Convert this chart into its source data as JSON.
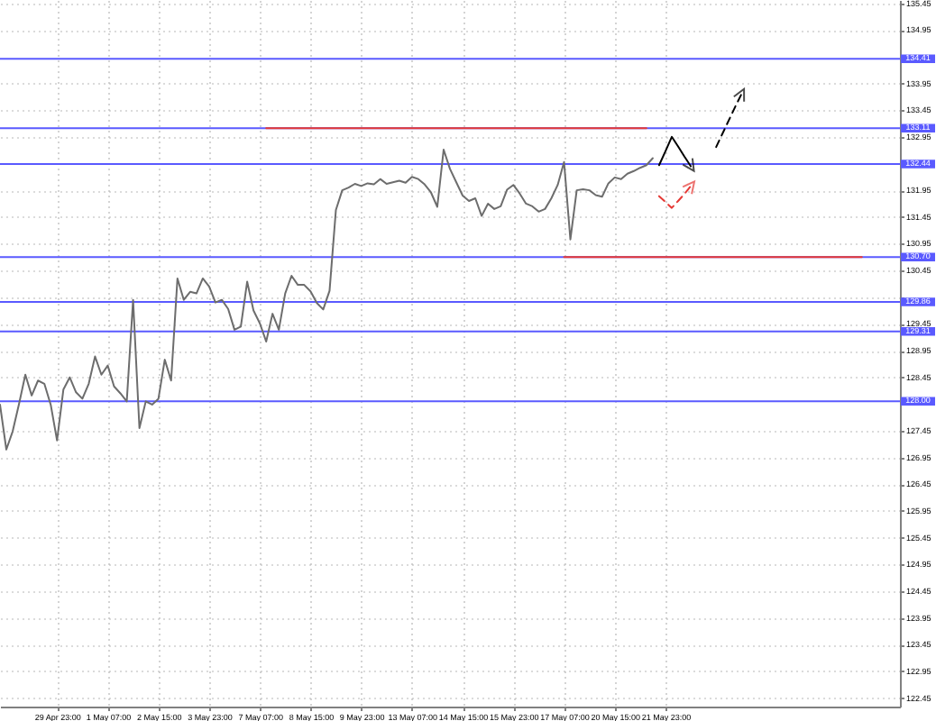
{
  "chart_data": {
    "type": "line",
    "categories": [
      null,
      null,
      null,
      null,
      null,
      null,
      null,
      null,
      null,
      "29 Apr 23:00",
      null,
      null,
      null,
      null,
      null,
      null,
      null,
      "1 May 07:00",
      null,
      null,
      null,
      null,
      null,
      null,
      null,
      "2 May 15:00",
      null,
      null,
      null,
      null,
      null,
      null,
      null,
      "3 May 23:00",
      null,
      null,
      null,
      null,
      null,
      null,
      null,
      "7 May 07:00",
      null,
      null,
      null,
      null,
      null,
      null,
      null,
      "8 May 15:00",
      null,
      null,
      null,
      null,
      null,
      null,
      null,
      "9 May 23:00",
      null,
      null,
      null,
      null,
      null,
      null,
      null,
      "13 May 07:00",
      null,
      null,
      null,
      null,
      null,
      null,
      null,
      "14 May 15:00",
      null,
      null,
      null,
      null,
      null,
      null,
      null,
      "15 May 23:00",
      null,
      null,
      null,
      null,
      null,
      null,
      null,
      "17 May 07:00",
      null,
      null,
      null,
      null,
      null,
      null,
      null,
      "20 May 15:00",
      null,
      null,
      null,
      null,
      null,
      null,
      null,
      "21 May 23:00",
      null,
      null,
      null,
      null,
      null,
      null,
      null,
      null,
      null,
      null,
      null,
      null,
      null,
      null,
      null,
      null,
      null,
      null,
      null,
      null,
      null,
      null,
      null,
      null,
      null,
      null,
      null,
      null,
      null,
      null,
      null,
      null,
      null,
      null,
      null,
      null,
      null
    ],
    "series": [
      {
        "color": "#6d6d6d",
        "values": [
          127.94,
          127.1,
          127.44,
          127.95,
          128.5,
          128.11,
          128.39,
          128.33,
          127.94,
          127.27,
          128.22,
          128.45,
          128.17,
          128.05,
          128.33,
          128.84,
          128.5,
          128.67,
          128.28,
          128.15,
          128.0,
          129.9,
          127.5,
          128.0,
          127.94,
          128.05,
          128.78,
          128.39,
          130.3,
          129.9,
          130.05,
          130.02,
          130.3,
          130.15,
          129.85,
          129.9,
          129.73,
          129.34,
          129.4,
          130.24,
          129.7,
          129.46,
          129.12,
          129.64,
          129.34,
          130.02,
          130.35,
          130.18,
          130.18,
          130.06,
          129.84,
          129.72,
          130.07,
          131.58,
          131.95,
          132.0,
          132.07,
          132.03,
          132.08,
          132.06,
          132.16,
          132.07,
          132.1,
          132.13,
          132.09,
          132.2,
          132.16,
          132.06,
          131.91,
          131.64,
          132.71,
          132.35,
          132.1,
          131.85,
          131.75,
          131.8,
          131.47,
          131.7,
          131.6,
          131.65,
          131.96,
          132.05,
          131.89,
          131.7,
          131.65,
          131.55,
          131.6,
          131.8,
          132.05,
          132.48,
          131.03,
          131.95,
          131.97,
          131.95,
          131.86,
          131.83,
          132.08,
          132.19,
          132.16,
          132.26,
          132.31,
          132.37,
          132.42,
          132.55,
          null,
          null,
          null,
          null,
          null,
          null,
          null,
          null,
          null,
          null,
          null,
          null,
          null,
          null,
          null,
          null,
          null,
          null,
          null,
          null,
          null,
          null,
          null,
          null,
          null,
          null,
          null,
          null,
          null,
          null,
          null,
          null,
          null,
          null,
          null,
          null,
          null,
          null,
          null
        ]
      },
      {
        "type": "line",
        "color": "#e53935",
        "values": [
          null,
          null,
          null,
          null,
          null,
          null,
          null,
          null,
          null,
          null,
          null,
          null,
          null,
          null,
          null,
          null,
          null,
          null,
          null,
          null,
          null,
          null,
          null,
          null,
          null,
          null,
          null,
          null,
          null,
          null,
          null,
          null,
          null,
          null,
          null,
          null,
          null,
          null,
          null,
          null,
          null,
          null,
          133.11,
          133.11,
          133.11,
          133.11,
          133.11,
          133.11,
          133.11,
          133.11,
          133.11,
          133.11,
          133.11,
          133.11,
          133.11,
          133.11,
          133.11,
          133.11,
          133.11,
          133.11,
          133.11,
          133.11,
          133.11,
          133.11,
          133.11,
          133.11,
          133.11,
          133.11,
          133.11,
          133.11,
          133.11,
          133.11,
          133.11,
          133.11,
          133.11,
          133.11,
          133.11,
          133.11,
          133.11,
          133.11,
          133.11,
          133.11,
          133.11,
          133.11,
          133.11,
          133.11,
          133.11,
          133.11,
          133.11,
          133.11,
          133.11,
          133.11,
          133.11,
          133.11,
          133.11,
          133.11,
          133.11,
          133.11,
          133.11,
          133.11,
          133.11,
          133.11,
          133.11,
          null,
          null,
          null,
          null,
          null,
          null,
          null,
          null,
          null,
          null,
          null,
          null,
          null,
          null,
          null,
          null,
          null,
          null,
          null,
          null,
          null,
          null,
          null,
          null,
          null,
          null,
          null,
          null,
          null,
          null,
          null,
          null,
          null,
          null,
          null,
          null,
          null,
          null,
          null,
          null
        ]
      },
      {
        "type": "line",
        "color": "#e53935",
        "values": [
          null,
          null,
          null,
          null,
          null,
          null,
          null,
          null,
          null,
          null,
          null,
          null,
          null,
          null,
          null,
          null,
          null,
          null,
          null,
          null,
          null,
          null,
          null,
          null,
          null,
          null,
          null,
          null,
          null,
          null,
          null,
          null,
          null,
          null,
          null,
          null,
          null,
          null,
          null,
          null,
          null,
          null,
          null,
          null,
          null,
          null,
          null,
          null,
          null,
          null,
          null,
          null,
          null,
          null,
          null,
          null,
          null,
          null,
          null,
          null,
          null,
          null,
          null,
          null,
          null,
          null,
          null,
          null,
          null,
          null,
          null,
          null,
          null,
          null,
          null,
          null,
          null,
          null,
          null,
          null,
          null,
          null,
          null,
          null,
          null,
          null,
          null,
          null,
          null,
          130.7,
          130.7,
          130.7,
          130.7,
          130.7,
          130.7,
          130.7,
          130.7,
          130.7,
          130.7,
          130.7,
          130.7,
          130.7,
          130.7,
          130.7,
          130.7,
          130.7,
          130.7,
          130.7,
          130.7,
          130.7,
          130.7,
          130.7,
          130.7,
          130.7,
          130.7,
          130.7,
          130.7,
          130.7,
          130.7,
          130.7,
          130.7,
          130.7,
          130.7,
          130.7,
          130.7,
          130.7,
          130.7,
          130.7,
          130.7,
          130.7,
          130.7,
          130.7,
          130.7,
          130.7,
          130.7,
          130.7,
          130.7,
          null,
          null,
          null,
          null,
          null,
          null
        ]
      },
      {
        "type": "line",
        "color": "#000000",
        "line_style": "solid",
        "values": [
          null,
          null,
          null,
          null,
          null,
          null,
          null,
          null,
          null,
          null,
          null,
          null,
          null,
          null,
          null,
          null,
          null,
          null,
          null,
          null,
          null,
          null,
          null,
          null,
          null,
          null,
          null,
          null,
          null,
          null,
          null,
          null,
          null,
          null,
          null,
          null,
          null,
          null,
          null,
          null,
          null,
          null,
          null,
          null,
          null,
          null,
          null,
          null,
          null,
          null,
          null,
          null,
          null,
          null,
          null,
          null,
          null,
          null,
          null,
          null,
          null,
          null,
          null,
          null,
          null,
          null,
          null,
          null,
          null,
          null,
          null,
          null,
          null,
          null,
          null,
          null,
          null,
          null,
          null,
          null,
          null,
          null,
          null,
          null,
          null,
          null,
          null,
          null,
          null,
          null,
          null,
          null,
          null,
          null,
          null,
          null,
          null,
          null,
          null,
          null,
          null,
          null,
          null,
          null,
          132.42,
          132.68,
          132.95,
          132.77,
          132.58,
          132.4,
          null,
          null,
          null,
          null,
          null,
          null,
          null,
          null,
          null,
          null,
          null,
          null,
          null,
          null,
          null,
          null,
          null,
          null,
          null,
          null,
          null,
          null,
          null,
          null,
          null,
          null,
          null,
          null,
          null,
          null,
          null,
          null,
          null
        ]
      },
      {
        "type": "line",
        "color": "#000000",
        "line_style": "dashed",
        "values": [
          null,
          null,
          null,
          null,
          null,
          null,
          null,
          null,
          null,
          null,
          null,
          null,
          null,
          null,
          null,
          null,
          null,
          null,
          null,
          null,
          null,
          null,
          null,
          null,
          null,
          null,
          null,
          null,
          null,
          null,
          null,
          null,
          null,
          null,
          null,
          null,
          null,
          null,
          null,
          null,
          null,
          null,
          null,
          null,
          null,
          null,
          null,
          null,
          null,
          null,
          null,
          null,
          null,
          null,
          null,
          null,
          null,
          null,
          null,
          null,
          null,
          null,
          null,
          null,
          null,
          null,
          null,
          null,
          null,
          null,
          null,
          null,
          null,
          null,
          null,
          null,
          null,
          null,
          null,
          null,
          null,
          null,
          null,
          null,
          null,
          null,
          null,
          null,
          null,
          null,
          null,
          null,
          null,
          null,
          null,
          null,
          null,
          null,
          null,
          null,
          null,
          null,
          null,
          null,
          null,
          null,
          null,
          null,
          null,
          null,
          null,
          null,
          null,
          132.76,
          133.01,
          133.26,
          133.51,
          133.75,
          null,
          null,
          null,
          null,
          null,
          null,
          null,
          null,
          null,
          null,
          null,
          null,
          null,
          null,
          null,
          null,
          null,
          null,
          null,
          null,
          null,
          null,
          null,
          null,
          null
        ]
      },
      {
        "type": "line",
        "color": "#e53935",
        "line_style": "dashed",
        "values": [
          null,
          null,
          null,
          null,
          null,
          null,
          null,
          null,
          null,
          null,
          null,
          null,
          null,
          null,
          null,
          null,
          null,
          null,
          null,
          null,
          null,
          null,
          null,
          null,
          null,
          null,
          null,
          null,
          null,
          null,
          null,
          null,
          null,
          null,
          null,
          null,
          null,
          null,
          null,
          null,
          null,
          null,
          null,
          null,
          null,
          null,
          null,
          null,
          null,
          null,
          null,
          null,
          null,
          null,
          null,
          null,
          null,
          null,
          null,
          null,
          null,
          null,
          null,
          null,
          null,
          null,
          null,
          null,
          null,
          null,
          null,
          null,
          null,
          null,
          null,
          null,
          null,
          null,
          null,
          null,
          null,
          null,
          null,
          null,
          null,
          null,
          null,
          null,
          null,
          null,
          null,
          null,
          null,
          null,
          null,
          null,
          null,
          null,
          null,
          null,
          null,
          null,
          null,
          null,
          131.84,
          131.73,
          131.62,
          131.75,
          131.88,
          132.03,
          null,
          null,
          null,
          null,
          null,
          null,
          null,
          null,
          null,
          null,
          null,
          null,
          null,
          null,
          null,
          null,
          null,
          null,
          null,
          null,
          null,
          null,
          null,
          null,
          null,
          null,
          null,
          null,
          null,
          null,
          null,
          null,
          null
        ]
      }
    ],
    "ylim": [
      122.29,
      135.51
    ],
    "yticks": [
      122.45,
      122.95,
      123.45,
      123.95,
      124.45,
      124.95,
      125.45,
      125.95,
      126.45,
      126.95,
      127.45,
      128.45,
      128.95,
      129.45,
      {
        "value": 129.95,
        "label": null
      },
      130.45,
      130.95,
      131.45,
      131.95,
      132.95,
      133.45,
      133.95,
      134.95,
      135.45
    ],
    "ref_lines": [
      {
        "axis": "y",
        "value": 134.41,
        "label": "134.41",
        "color": "#5a5aff"
      },
      {
        "axis": "y",
        "value": 133.11,
        "label": "133.11",
        "color": "#5a5aff"
      },
      {
        "axis": "y",
        "value": 132.44,
        "label": "132.44",
        "color": "#5a5aff"
      },
      {
        "axis": "y",
        "value": 130.7,
        "label": "130.70",
        "color": "#5a5aff"
      },
      {
        "axis": "y",
        "value": 129.86,
        "label": "129.86",
        "color": "#5a5aff"
      },
      {
        "axis": "y",
        "value": 129.31,
        "label": "129.31",
        "color": "#5a5aff"
      },
      {
        "axis": "y",
        "value": 128.0,
        "label": "128.00",
        "color": "#5a5aff"
      }
    ],
    "grid": true,
    "marker": "none",
    "line_style": "solid"
  }
}
